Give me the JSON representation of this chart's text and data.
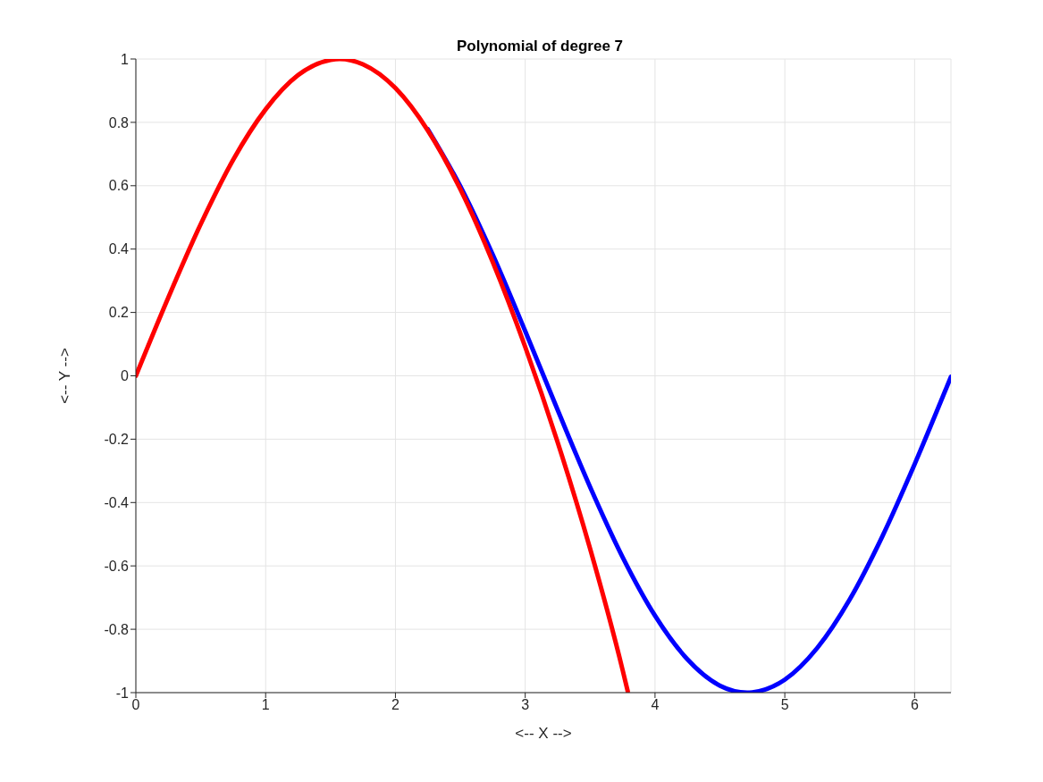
{
  "chart_data": {
    "type": "line",
    "title": "Polynomial of degree 7",
    "xlabel": "<-- X -->",
    "ylabel": "<-- Y -->",
    "xlim": [
      0,
      6.28
    ],
    "ylim": [
      -1,
      1
    ],
    "xticks": [
      0,
      1,
      2,
      3,
      4,
      5,
      6
    ],
    "yticks": [
      -1,
      -0.8,
      -0.6,
      -0.4,
      -0.2,
      0,
      0.2,
      0.4,
      0.6,
      0.8,
      1
    ],
    "grid": true,
    "legend": false,
    "marker": "none",
    "line_style": "solid",
    "series": [
      {
        "color": "#0000ff",
        "x": [
          2.25,
          2.5,
          2.75,
          3,
          3.25,
          3.5,
          3.75,
          4,
          4.25,
          4.5,
          4.71,
          4.75,
          5,
          5.25,
          5.5,
          5.75,
          6,
          6.25,
          6.28
        ],
        "values": [
          0.778,
          0.598,
          0.382,
          0.141,
          -0.108,
          -0.351,
          -0.572,
          -0.757,
          -0.895,
          -0.978,
          -1,
          -0.999,
          -0.959,
          -0.859,
          -0.706,
          -0.508,
          -0.279,
          -0.033,
          -0.003
        ]
      },
      {
        "color": "#ff0000",
        "x": [
          0,
          0.25,
          0.5,
          0.75,
          1,
          1.25,
          1.5,
          1.57,
          1.75,
          2,
          2.25,
          2.5,
          2.75,
          3,
          3.25,
          3.5,
          3.75,
          3.79
        ],
        "values": [
          0,
          0.247,
          0.479,
          0.682,
          0.841,
          0.949,
          0.997,
          1,
          0.983,
          0.908,
          0.774,
          0.589,
          0.359,
          0.091,
          -0.21,
          -0.546,
          -0.928,
          -0.996
        ]
      }
    ]
  }
}
